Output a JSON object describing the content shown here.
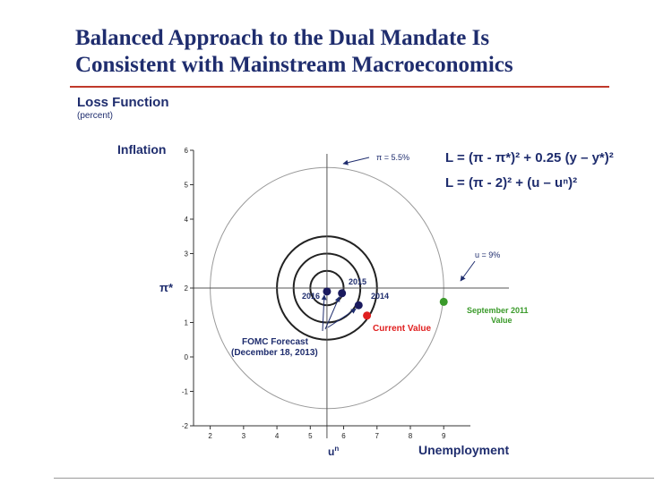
{
  "title_line1": "Balanced Approach to the Dual Mandate Is",
  "title_line2": "Consistent with Mainstream Macroeconomics",
  "subtitle": "Loss Function",
  "unit": "(percent)",
  "colors": {
    "title": "#1f2d6e",
    "rule": "#c0392b",
    "forecast_points": "#1a1a5e",
    "current_value": "#e02020",
    "september_2011": "#3a9a2a",
    "contours": "#222222",
    "outer_circle": "#9a9a9a"
  },
  "chart_data": {
    "type": "scatter",
    "xlabel": "Unemployment",
    "ylabel": "Inflation",
    "xlim": [
      1.5,
      9.8
    ],
    "ylim": [
      -2,
      6
    ],
    "x_ticks": [
      "2",
      "3",
      "4",
      "5",
      "6",
      "7",
      "8",
      "9"
    ],
    "y_ticks": [
      "-2",
      "-1",
      "0",
      "1",
      "2",
      "3",
      "4",
      "5",
      "6"
    ],
    "reference_lines": {
      "u_star": 5.5,
      "pi_star": 2,
      "u_star_label": "u",
      "u_star_sup": "n",
      "pi_star_label": "π*"
    },
    "points": [
      {
        "label": "2016",
        "x": 5.5,
        "y": 1.9,
        "color": "#1a1a5e"
      },
      {
        "label": "2015",
        "x": 5.95,
        "y": 1.85,
        "color": "#1a1a5e"
      },
      {
        "label": "2014",
        "x": 6.45,
        "y": 1.5,
        "color": "#1a1a5e"
      },
      {
        "label": "Current Value",
        "x": 6.7,
        "y": 1.2,
        "color": "#e02020"
      },
      {
        "label": "September 2011 Value",
        "x": 9.0,
        "y": 1.6,
        "color": "#3a9a2a"
      }
    ],
    "contour_radii": [
      0.5,
      1.0,
      1.5
    ],
    "outer_circle_radius": 3.5,
    "annotations": {
      "pi_label": "π = 5.5%",
      "u_label": "u = 9%",
      "forecast_line1": "FOMC Forecast",
      "forecast_line2": "(December 18, 2013)",
      "current_value": "Current Value",
      "sept_line1": "September 2011",
      "sept_line2": "Value",
      "p2016": "2016",
      "p2015": "2015",
      "p2014": "2014"
    },
    "equations": {
      "eq1": "L = (π  - π*)² + 0.25 (y – y*)²",
      "eq2": "L = (π  - 2)² + (u – uⁿ)²"
    }
  }
}
